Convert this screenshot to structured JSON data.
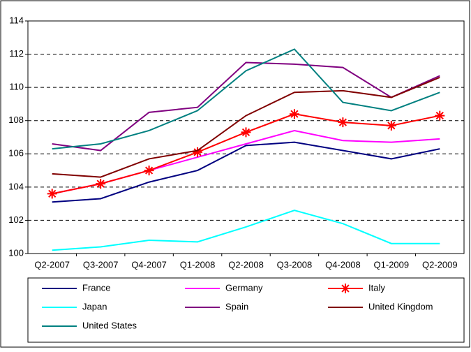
{
  "chart_data": {
    "type": "line",
    "categories": [
      "Q2-2007",
      "Q3-2007",
      "Q4-2007",
      "Q1-2008",
      "Q2-2008",
      "Q3-2008",
      "Q4-2008",
      "Q1-2009",
      "Q2-2009"
    ],
    "series": [
      {
        "name": "France",
        "color": "#000080",
        "values": [
          103.1,
          103.3,
          104.3,
          105.0,
          106.5,
          106.7,
          106.2,
          105.7,
          106.3
        ]
      },
      {
        "name": "Germany",
        "color": "#ff00ff",
        "values": [
          103.6,
          104.2,
          105.0,
          105.8,
          106.6,
          107.4,
          106.8,
          106.7,
          106.9
        ]
      },
      {
        "name": "Italy",
        "color": "#ff0000",
        "marker": "asterisk",
        "values": [
          103.6,
          104.2,
          105.0,
          106.1,
          107.3,
          108.4,
          107.9,
          107.7,
          108.3
        ]
      },
      {
        "name": "Japan",
        "color": "#00ffff",
        "values": [
          100.2,
          100.4,
          100.8,
          100.7,
          101.6,
          102.6,
          101.8,
          100.6,
          100.6
        ]
      },
      {
        "name": "Spain",
        "color": "#800080",
        "values": [
          106.6,
          106.2,
          108.5,
          108.8,
          111.5,
          111.4,
          111.2,
          109.4,
          110.7
        ]
      },
      {
        "name": "United Kingdom",
        "color": "#800000",
        "values": [
          104.8,
          104.6,
          105.7,
          106.2,
          108.3,
          109.7,
          109.8,
          109.4,
          110.6
        ]
      },
      {
        "name": "United States",
        "color": "#008080",
        "values": [
          106.3,
          106.6,
          107.4,
          108.6,
          111.0,
          112.3,
          109.1,
          108.6,
          109.7
        ]
      }
    ],
    "ylim": [
      100,
      114
    ],
    "yticks": [
      100,
      102,
      104,
      106,
      108,
      110,
      112,
      114
    ],
    "grid": true,
    "legend": "bottom"
  }
}
